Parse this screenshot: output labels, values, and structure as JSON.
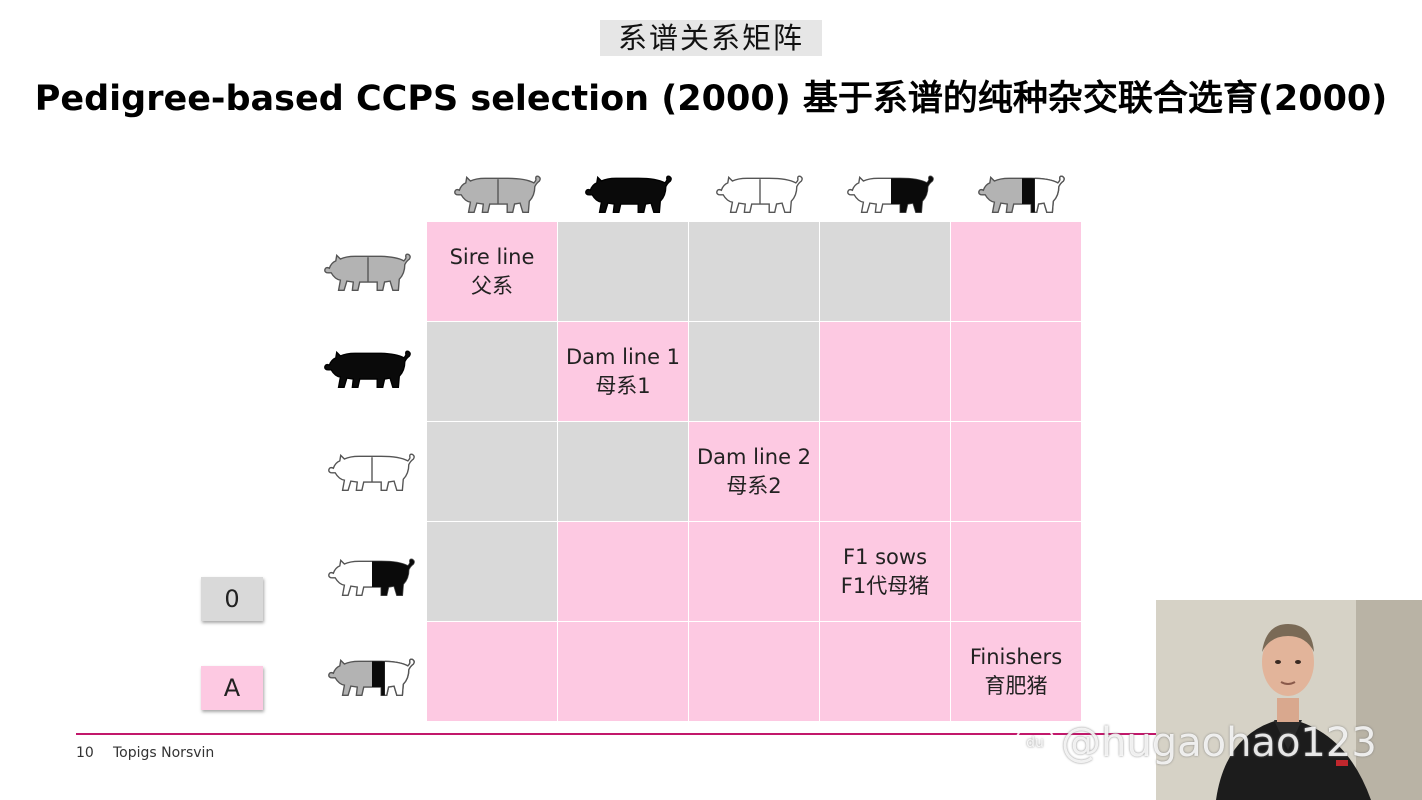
{
  "header": {
    "subtitle_cn": "系谱关系矩阵",
    "title": "Pedigree-based CCPS selection (2000) 基于系谱的纯种杂交联合选育(2000)"
  },
  "pigs": [
    {
      "name": "sire-line",
      "kind": "grey"
    },
    {
      "name": "dam-line-1",
      "kind": "black"
    },
    {
      "name": "dam-line-2",
      "kind": "white"
    },
    {
      "name": "f1-sow",
      "kind": "white-black-rear"
    },
    {
      "name": "finisher",
      "kind": "grey-black-band"
    }
  ],
  "matrix": {
    "diagonal_labels": [
      {
        "en": "Sire line",
        "cn": "父系"
      },
      {
        "en": "Dam line 1",
        "cn": "母系1"
      },
      {
        "en": "Dam line 2",
        "cn": "母系2"
      },
      {
        "en": "F1 sows",
        "cn": "F1代母猪"
      },
      {
        "en": "Finishers",
        "cn": "育肥猪"
      }
    ],
    "cells": [
      [
        "A",
        "0",
        "0",
        "0",
        "A"
      ],
      [
        "0",
        "A",
        "0",
        "A",
        "A"
      ],
      [
        "0",
        "0",
        "A",
        "A",
        "A"
      ],
      [
        "0",
        "A",
        "A",
        "A",
        "A"
      ],
      [
        "A",
        "A",
        "A",
        "A",
        "A"
      ]
    ]
  },
  "legend": {
    "zero_label": "0",
    "a_label": "A"
  },
  "colors": {
    "a_cell": "#fdc9e2",
    "zero_cell": "#d9d9d9",
    "accent_line": "#c2186b"
  },
  "footer": {
    "page_number": "10",
    "company": "Topigs Norsvin"
  },
  "watermark": {
    "text": "@hugaohao123",
    "badge": "du"
  }
}
